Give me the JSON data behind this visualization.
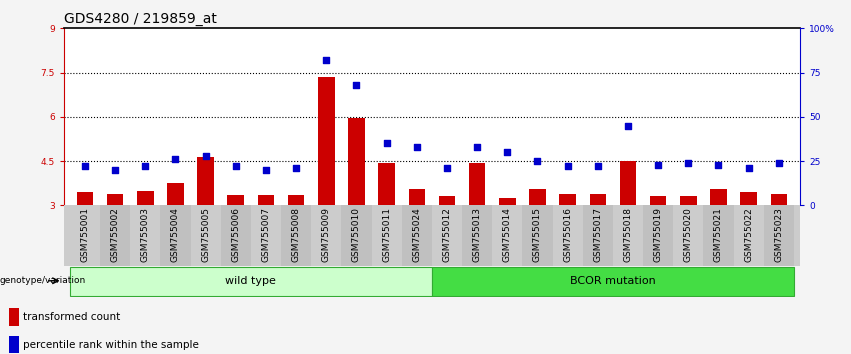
{
  "title": "GDS4280 / 219859_at",
  "samples": [
    "GSM755001",
    "GSM755002",
    "GSM755003",
    "GSM755004",
    "GSM755005",
    "GSM755006",
    "GSM755007",
    "GSM755008",
    "GSM755009",
    "GSM755010",
    "GSM755011",
    "GSM755024",
    "GSM755012",
    "GSM755013",
    "GSM755014",
    "GSM755015",
    "GSM755016",
    "GSM755017",
    "GSM755018",
    "GSM755019",
    "GSM755020",
    "GSM755021",
    "GSM755022",
    "GSM755023"
  ],
  "bar_values": [
    3.45,
    3.4,
    3.5,
    3.75,
    4.65,
    3.35,
    3.35,
    3.35,
    7.35,
    5.95,
    4.45,
    3.55,
    3.3,
    4.45,
    3.25,
    3.55,
    3.4,
    3.4,
    4.5,
    3.3,
    3.3,
    3.55,
    3.45,
    3.4
  ],
  "dot_values": [
    22,
    20,
    22,
    26,
    28,
    22,
    20,
    21,
    82,
    68,
    35,
    33,
    21,
    33,
    30,
    25,
    22,
    22,
    45,
    23,
    24,
    23,
    21,
    24
  ],
  "bar_color": "#cc0000",
  "dot_color": "#0000cc",
  "ylim_left": [
    3,
    9
  ],
  "ylim_right": [
    0,
    100
  ],
  "yticks_left": [
    3,
    4.5,
    6,
    7.5,
    9
  ],
  "yticks_right": [
    0,
    25,
    50,
    75,
    100
  ],
  "ytick_labels_right": [
    "0",
    "25",
    "50",
    "75",
    "100%"
  ],
  "hlines": [
    4.5,
    6.0,
    7.5
  ],
  "wild_type_count": 12,
  "group_labels": [
    "wild type",
    "BCOR mutation"
  ],
  "genotype_label": "genotype/variation",
  "legend_bar": "transformed count",
  "legend_dot": "percentile rank within the sample",
  "wt_color": "#ccffcc",
  "bcor_color": "#44dd44",
  "border_color": "#33aa33",
  "title_fontsize": 10,
  "tick_fontsize": 6.5,
  "label_fontsize": 8
}
